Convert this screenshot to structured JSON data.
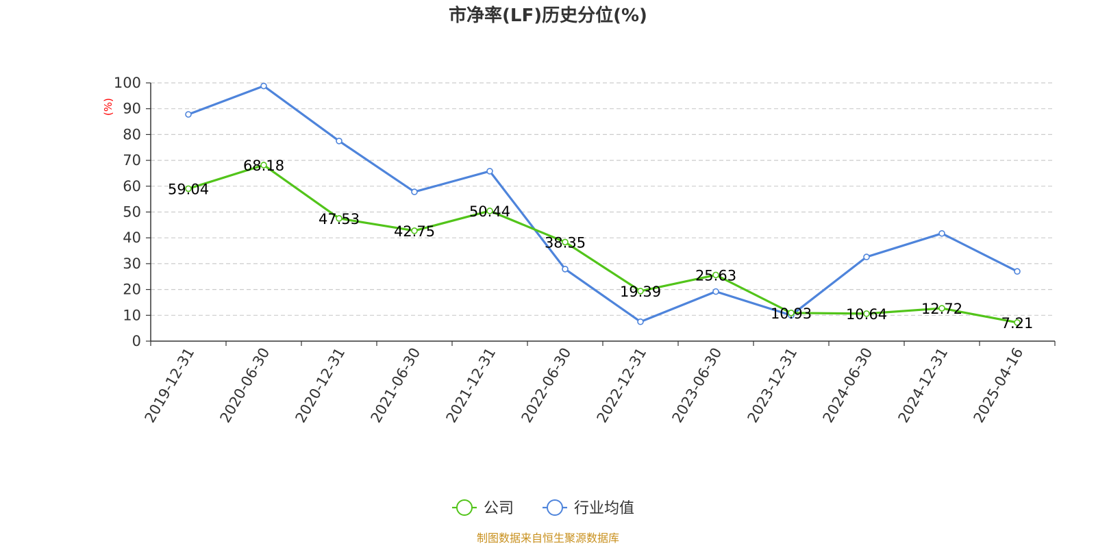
{
  "chart_data": {
    "type": "line",
    "title": "市净率(LF)历史分位(%)",
    "ylabel": "(%)",
    "ylim": [
      0,
      100
    ],
    "yticks": [
      0,
      10,
      20,
      30,
      40,
      50,
      60,
      70,
      80,
      90,
      100
    ],
    "grid": true,
    "legend_position": "bottom",
    "categories": [
      "2019-12-31",
      "2020-06-30",
      "2020-12-31",
      "2021-06-30",
      "2021-12-31",
      "2022-06-30",
      "2022-12-31",
      "2023-06-30",
      "2023-12-31",
      "2024-06-30",
      "2024-12-31",
      "2025-04-16"
    ],
    "series": [
      {
        "name": "公司",
        "color": "#52c41a",
        "show_labels": true,
        "values": [
          59.04,
          68.18,
          47.53,
          42.75,
          50.44,
          38.35,
          19.39,
          25.63,
          10.93,
          10.64,
          12.72,
          7.21
        ],
        "labels": [
          "59.04",
          "68.18",
          "47.53",
          "42.75",
          "50.44",
          "38.35",
          "19.39",
          "25.63",
          "10.93",
          "10.64",
          "12.72",
          "7.21"
        ]
      },
      {
        "name": "行业均值",
        "color": "#4e84db",
        "show_labels": false,
        "values": [
          87.8,
          98.8,
          77.5,
          57.8,
          65.8,
          27.9,
          7.5,
          19.2,
          10.0,
          32.6,
          41.7,
          27.0
        ]
      }
    ],
    "source": "制图数据来自恒生聚源数据库"
  }
}
